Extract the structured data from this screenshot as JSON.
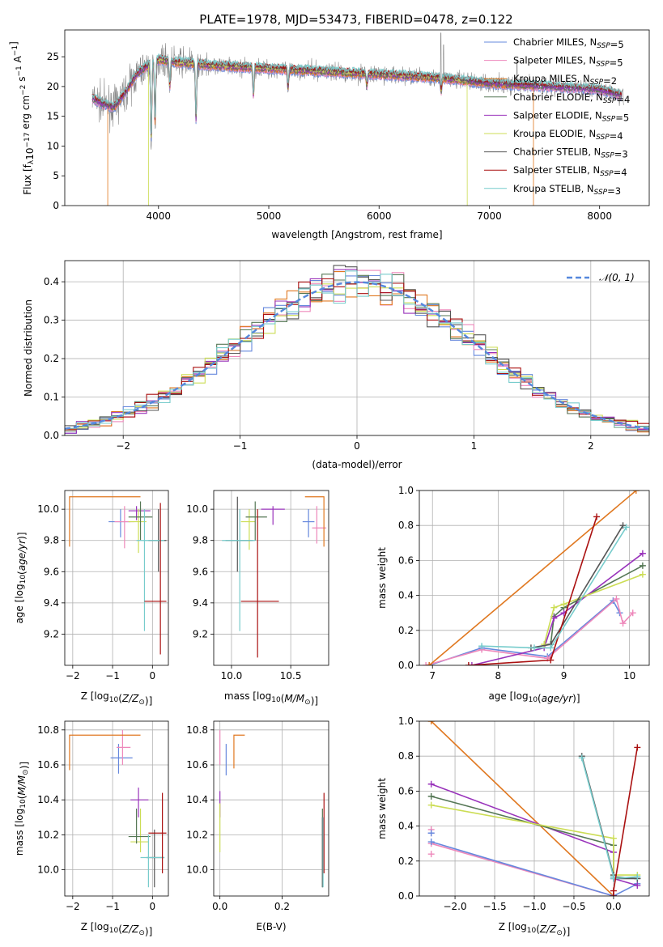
{
  "figure_title": "PLATE=1978, MJD=53473, FIBERID=0478, z=0.122",
  "colors": {
    "Chabrier MILES": "#6688dd",
    "Salpeter MILES": "#ee88bb",
    "Kroupa MILES": "#e07820",
    "Chabrier ELODIE": "#557755",
    "Salpeter ELODIE": "#9933bb",
    "Kroupa ELODIE": "#ccdd55",
    "Chabrier STELIB": "#555555",
    "Salpeter STELIB": "#aa1111",
    "Kroupa STELIB": "#77cccc",
    "data": "#888888",
    "gaussian": "#5588dd"
  },
  "chart_data": [
    {
      "id": "spectrum",
      "type": "line",
      "xlabel": "wavelength [Angstrom, rest frame]",
      "ylabel": "Flux [f_λ 10^-17 erg cm^-2 s^-1 A^-1]",
      "xlim": [
        3150,
        8450
      ],
      "ylim": [
        0,
        29.5
      ],
      "xticks": [
        4000,
        5000,
        6000,
        7000,
        8000
      ],
      "yticks": [
        0,
        5,
        10,
        15,
        20,
        25
      ],
      "legend_position": "top-right",
      "legend": [
        {
          "name": "Chabrier MILES",
          "nssp": "5"
        },
        {
          "name": "Salpeter MILES",
          "nssp": "5"
        },
        {
          "name": "Kroupa MILES",
          "nssp": "2"
        },
        {
          "name": "Chabrier ELODIE",
          "nssp": "4"
        },
        {
          "name": "Salpeter ELODIE",
          "nssp": "5"
        },
        {
          "name": "Kroupa ELODIE",
          "nssp": "4"
        },
        {
          "name": "Chabrier STELIB",
          "nssp": "3"
        },
        {
          "name": "Salpeter STELIB",
          "nssp": "4"
        },
        {
          "name": "Kroupa STELIB",
          "nssp": "3"
        }
      ],
      "continuum": [
        [
          3400,
          18
        ],
        [
          3500,
          17
        ],
        [
          3600,
          16.5
        ],
        [
          3700,
          19
        ],
        [
          3800,
          22
        ],
        [
          3900,
          23.5
        ],
        [
          4000,
          24.5
        ],
        [
          4200,
          24
        ],
        [
          4500,
          23.5
        ],
        [
          5000,
          23
        ],
        [
          5500,
          22.5
        ],
        [
          6000,
          22
        ],
        [
          6500,
          21.5
        ],
        [
          7000,
          20.5
        ],
        [
          7500,
          20
        ],
        [
          8000,
          19.5
        ],
        [
          8200,
          18.5
        ]
      ],
      "absorption_lines": [
        [
          3934,
          9.5
        ],
        [
          3969,
          13
        ],
        [
          4102,
          19.5
        ],
        [
          4340,
          13.5
        ],
        [
          4861,
          18
        ],
        [
          5175,
          19.5
        ],
        [
          5890,
          20
        ],
        [
          6563,
          19
        ],
        [
          6800,
          0
        ],
        [
          7400,
          0
        ]
      ],
      "model_cutoffs": [
        {
          "series": "Kroupa MILES",
          "from": 3540,
          "to": 7400
        },
        {
          "series": "Kroupa ELODIE",
          "from": 3910,
          "to": 6800
        }
      ]
    },
    {
      "id": "residuals",
      "type": "histogram",
      "xlabel": "(data-model)/error",
      "ylabel": "Normed distribution",
      "xlim": [
        -2.5,
        2.5
      ],
      "ylim": [
        0,
        0.455
      ],
      "xticks": [
        -2,
        -1,
        0,
        1,
        2
      ],
      "yticks": [
        0.0,
        0.1,
        0.2,
        0.3,
        0.4
      ],
      "legend_label": "N(0,1)",
      "legend_position": "top-right"
    },
    {
      "id": "age-vs-Z",
      "type": "scatter",
      "xlabel": "Z [log10(Z/Z⊙)]",
      "ylabel": "age [log10(age/yr)]",
      "xlim": [
        -2.2,
        0.4
      ],
      "ylim": [
        9.0,
        10.12
      ],
      "xticks": [
        -2,
        -1,
        0
      ],
      "yticks": [
        9.2,
        9.4,
        9.6,
        9.8,
        10.0
      ]
    },
    {
      "id": "age-vs-mass",
      "type": "scatter",
      "xlabel": "mass [log10(M/M⊙)]",
      "ylabel": "",
      "xlim": [
        9.85,
        10.82
      ],
      "ylim": [
        9.0,
        10.12
      ],
      "xticks": [
        10.0,
        10.5
      ],
      "yticks": [
        9.2,
        9.4,
        9.6,
        9.8,
        10.0
      ]
    },
    {
      "id": "massweight-vs-age",
      "type": "line",
      "xlabel": "age [log10(age/yr)]",
      "ylabel": "mass weight",
      "xlim": [
        6.8,
        10.3
      ],
      "ylim": [
        0,
        1
      ],
      "xticks": [
        7,
        8,
        9,
        10
      ],
      "yticks": [
        0.0,
        0.2,
        0.4,
        0.6,
        0.8,
        1.0
      ],
      "series": [
        {
          "name": "Chabrier MILES",
          "x": [
            6.95,
            7.75,
            8.75,
            9.75,
            9.85
          ],
          "y": [
            0.0,
            0.1,
            0.05,
            0.37,
            0.3
          ]
        },
        {
          "name": "Salpeter MILES",
          "x": [
            6.9,
            7.75,
            8.75,
            9.8,
            9.9,
            10.05
          ],
          "y": [
            0.0,
            0.09,
            0.04,
            0.38,
            0.24,
            0.3
          ]
        },
        {
          "name": "Kroupa MILES",
          "x": [
            6.95,
            10.1
          ],
          "y": [
            0.0,
            1.0
          ]
        },
        {
          "name": "Chabrier ELODIE",
          "x": [
            8.8,
            8.85,
            9.0,
            10.2
          ],
          "y": [
            0.12,
            0.28,
            0.33,
            0.57
          ]
        },
        {
          "name": "Salpeter ELODIE",
          "x": [
            7.6,
            8.7,
            8.85,
            9.0,
            10.2
          ],
          "y": [
            0.0,
            0.1,
            0.27,
            0.3,
            0.64
          ]
        },
        {
          "name": "Kroupa ELODIE",
          "x": [
            8.7,
            8.85,
            9.0,
            10.2
          ],
          "y": [
            0.12,
            0.33,
            0.35,
            0.52
          ]
        },
        {
          "name": "Chabrier STELIB",
          "x": [
            8.5,
            8.8,
            9.9
          ],
          "y": [
            0.1,
            0.12,
            0.8
          ]
        },
        {
          "name": "Salpeter STELIB",
          "x": [
            7.55,
            8.8,
            9.5
          ],
          "y": [
            0.0,
            0.03,
            0.85
          ]
        },
        {
          "name": "Kroupa STELIB",
          "x": [
            7.75,
            8.55,
            8.8,
            9.95
          ],
          "y": [
            0.11,
            0.1,
            0.1,
            0.79
          ]
        }
      ]
    },
    {
      "id": "mass-vs-Z",
      "type": "scatter",
      "xlabel": "Z [log10(Z/Z⊙)]",
      "ylabel": "mass [log10(M/M⊙)]",
      "xlim": [
        -2.2,
        0.4
      ],
      "ylim": [
        9.85,
        10.85
      ],
      "xticks": [
        -2,
        -1,
        0
      ],
      "yticks": [
        10.0,
        10.2,
        10.4,
        10.6,
        10.8
      ]
    },
    {
      "id": "mass-vs-ebv",
      "type": "scatter",
      "xlabel": "E(B-V)",
      "ylabel": "",
      "xlim": [
        -0.02,
        0.35
      ],
      "ylim": [
        9.85,
        10.85
      ],
      "xticks": [
        0.0,
        0.2
      ],
      "yticks": [
        10.0,
        10.2,
        10.4,
        10.6,
        10.8
      ]
    },
    {
      "id": "massweight-vs-Z",
      "type": "line",
      "xlabel": "Z [log10(Z/Z⊙)]",
      "ylabel": "mass weight",
      "xlim": [
        -2.45,
        0.45
      ],
      "ylim": [
        0,
        1
      ],
      "xticks": [
        -2.0,
        -1.5,
        -1.0,
        -0.5,
        0.0
      ],
      "yticks": [
        0.0,
        0.2,
        0.4,
        0.6,
        0.8,
        1.0
      ],
      "series": [
        {
          "name": "Kroupa MILES",
          "x": [
            -2.3,
            0.0
          ],
          "y": [
            1.0,
            0.0
          ]
        },
        {
          "name": "Salpeter MILES",
          "x": [
            -2.3,
            0.0
          ],
          "y": [
            0.3,
            0.0
          ]
        },
        {
          "name": "Chabrier MILES",
          "x": [
            -2.3,
            0.0,
            0.3
          ],
          "y": [
            0.31,
            0.0,
            0.07
          ]
        },
        {
          "name": "Salpeter ELODIE",
          "x": [
            -2.3,
            0.0,
            0.0,
            0.3
          ],
          "y": [
            0.64,
            0.25,
            0.1,
            0.06
          ]
        },
        {
          "name": "Chabrier ELODIE",
          "x": [
            -2.3,
            0.0,
            0.0,
            0.3
          ],
          "y": [
            0.57,
            0.29,
            0.11,
            0.1
          ]
        },
        {
          "name": "Kroupa ELODIE",
          "x": [
            -2.3,
            0.0,
            0.0,
            0.3
          ],
          "y": [
            0.52,
            0.33,
            0.12,
            0.12
          ]
        },
        {
          "name": "Chabrier STELIB",
          "x": [
            -0.4,
            0.0,
            0.0,
            0.3
          ],
          "y": [
            0.8,
            0.12,
            0.1,
            0.1
          ]
        },
        {
          "name": "Kroupa STELIB",
          "x": [
            -0.4,
            0.0,
            0.0,
            0.3
          ],
          "y": [
            0.79,
            0.11,
            0.1,
            0.11
          ]
        },
        {
          "name": "Salpeter STELIB",
          "x": [
            0.0,
            0.0,
            0.3
          ],
          "y": [
            0.0,
            0.03,
            0.85
          ]
        }
      ],
      "scatter_points": [
        {
          "name": "Salpeter MILES",
          "x": [
            -2.3,
            -2.3,
            -2.3
          ],
          "y": [
            0.24,
            0.36,
            0.38
          ]
        },
        {
          "name": "Chabrier MILES",
          "x": [
            -2.3
          ],
          "y": [
            0.36
          ]
        }
      ]
    }
  ]
}
